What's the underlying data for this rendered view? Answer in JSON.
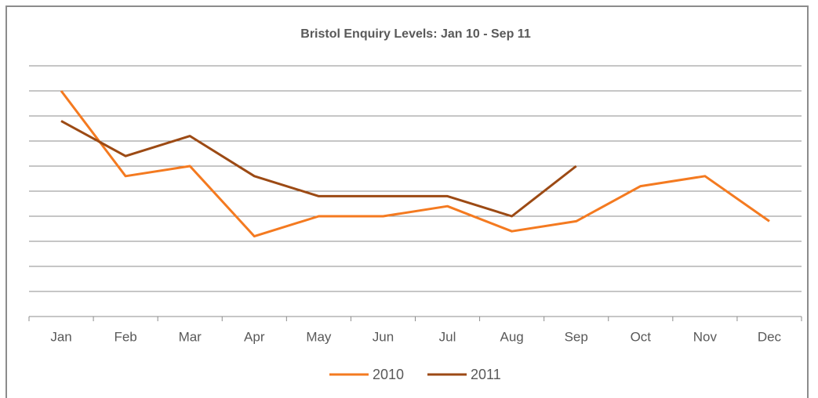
{
  "chart_data": {
    "type": "line",
    "title": "Bristol Enquiry Levels: Jan 10 - Sep 11",
    "categories": [
      "Jan",
      "Feb",
      "Mar",
      "Apr",
      "May",
      "Jun",
      "Jul",
      "Aug",
      "Sep",
      "Oct",
      "Nov",
      "Dec"
    ],
    "series": [
      {
        "name": "2010",
        "color": "#f47a20",
        "values": [
          9,
          5.6,
          6,
          3.2,
          4,
          4,
          4.4,
          3.4,
          3.8,
          5.2,
          5.6,
          3.8
        ]
      },
      {
        "name": "2011",
        "color": "#9c4a14",
        "values": [
          7.8,
          6.4,
          7.2,
          5.6,
          4.8,
          4.8,
          4.8,
          4,
          6,
          null,
          null,
          null
        ]
      }
    ],
    "ylim": [
      0,
      10
    ],
    "yticks": [
      1,
      2,
      3,
      4,
      5,
      6,
      7,
      8,
      9,
      10
    ],
    "grid": true,
    "legend": "bottom"
  }
}
